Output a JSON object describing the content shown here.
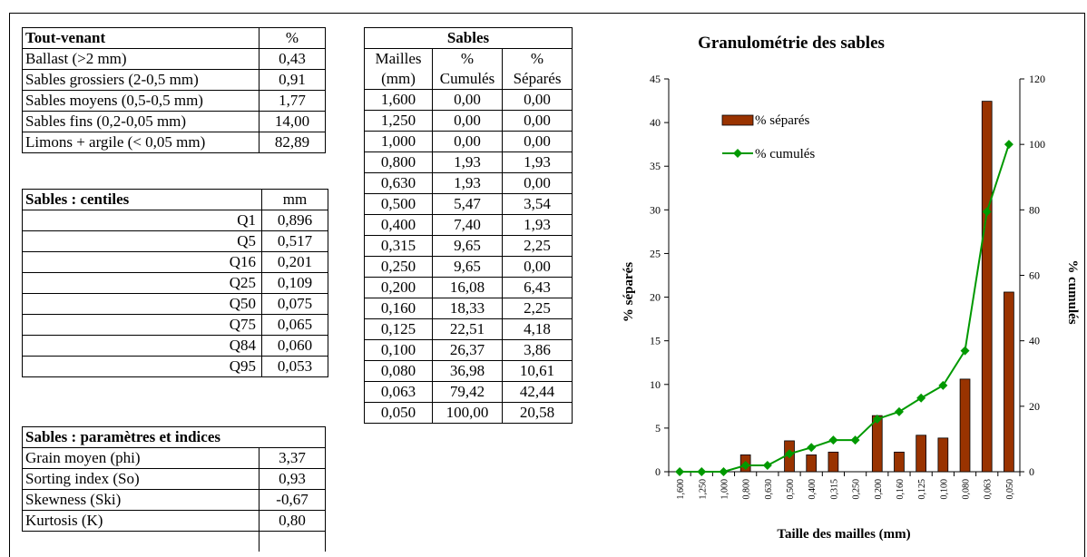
{
  "tout_venant": {
    "header": [
      "Tout-venant",
      "%"
    ],
    "rows": [
      [
        "Ballast (>2 mm)",
        "0,43"
      ],
      [
        "Sables grossiers (2-0,5 mm)",
        "0,91"
      ],
      [
        "Sables moyens (0,5-0,5 mm)",
        "1,77"
      ],
      [
        "Sables fins (0,2-0,05 mm)",
        "14,00"
      ],
      [
        "Limons + argile (< 0,05 mm)",
        "82,89"
      ]
    ]
  },
  "centiles": {
    "header": [
      "Sables : centiles",
      "mm"
    ],
    "rows": [
      [
        "Q1",
        "0,896"
      ],
      [
        "Q5",
        "0,517"
      ],
      [
        "Q16",
        "0,201"
      ],
      [
        "Q25",
        "0,109"
      ],
      [
        "Q50",
        "0,075"
      ],
      [
        "Q75",
        "0,065"
      ],
      [
        "Q84",
        "0,060"
      ],
      [
        "Q95",
        "0,053"
      ]
    ]
  },
  "parametres": {
    "header": "Sables : paramètres et indices",
    "rows": [
      [
        "Grain moyen (phi)",
        "3,37"
      ],
      [
        "Sorting index (So)",
        "0,93"
      ],
      [
        "Skewness (Ski)",
        "-0,67"
      ],
      [
        "Kurtosis (K)",
        "0,80"
      ]
    ]
  },
  "sables": {
    "title": "Sables",
    "col_headers_1": [
      "Mailles",
      "%",
      "%"
    ],
    "col_headers_2": [
      "(mm)",
      "Cumulés",
      "Séparés"
    ],
    "rows": [
      [
        "1,600",
        "0,00",
        "0,00"
      ],
      [
        "1,250",
        "0,00",
        "0,00"
      ],
      [
        "1,000",
        "0,00",
        "0,00"
      ],
      [
        "0,800",
        "1,93",
        "1,93"
      ],
      [
        "0,630",
        "1,93",
        "0,00"
      ],
      [
        "0,500",
        "5,47",
        "3,54"
      ],
      [
        "0,400",
        "7,40",
        "1,93"
      ],
      [
        "0,315",
        "9,65",
        "2,25"
      ],
      [
        "0,250",
        "9,65",
        "0,00"
      ],
      [
        "0,200",
        "16,08",
        "6,43"
      ],
      [
        "0,160",
        "18,33",
        "2,25"
      ],
      [
        "0,125",
        "22,51",
        "4,18"
      ],
      [
        "0,100",
        "26,37",
        "3,86"
      ],
      [
        "0,080",
        "36,98",
        "10,61"
      ],
      [
        "0,063",
        "79,42",
        "42,44"
      ],
      [
        "0,050",
        "100,00",
        "20,58"
      ]
    ]
  },
  "chart_data": {
    "type": "bar",
    "title": "Granulométrie des sables",
    "xlabel": "Taille des mailles (mm)",
    "ylabel": "% séparés",
    "y2label": "% cumulés",
    "categories": [
      "1,600",
      "1,250",
      "1,000",
      "0,800",
      "0,630",
      "0,500",
      "0,400",
      "0,315",
      "0,250",
      "0,200",
      "0,160",
      "0,125",
      "0,100",
      "0,080",
      "0,063",
      "0,050"
    ],
    "series": [
      {
        "name": "% séparés",
        "type": "bar",
        "axis": "left",
        "color": "#993300",
        "values": [
          0,
          0,
          0,
          1.93,
          0,
          3.54,
          1.93,
          2.25,
          0,
          6.43,
          2.25,
          4.18,
          3.86,
          10.61,
          42.44,
          20.58
        ]
      },
      {
        "name": "% cumulés",
        "type": "line",
        "axis": "right",
        "color": "#009900",
        "values": [
          0,
          0,
          0,
          1.93,
          1.93,
          5.47,
          7.4,
          9.65,
          9.65,
          16.08,
          18.33,
          22.51,
          26.37,
          36.98,
          79.42,
          100
        ]
      }
    ],
    "ylim": [
      0,
      45
    ],
    "y2lim": [
      0,
      120
    ],
    "yticks": [
      "0",
      "5",
      "10",
      "15",
      "20",
      "25",
      "30",
      "35",
      "40",
      "45"
    ],
    "y2ticks": [
      "0",
      "20",
      "40",
      "60",
      "80",
      "100",
      "120"
    ],
    "legend": "top-left",
    "grid": false
  }
}
